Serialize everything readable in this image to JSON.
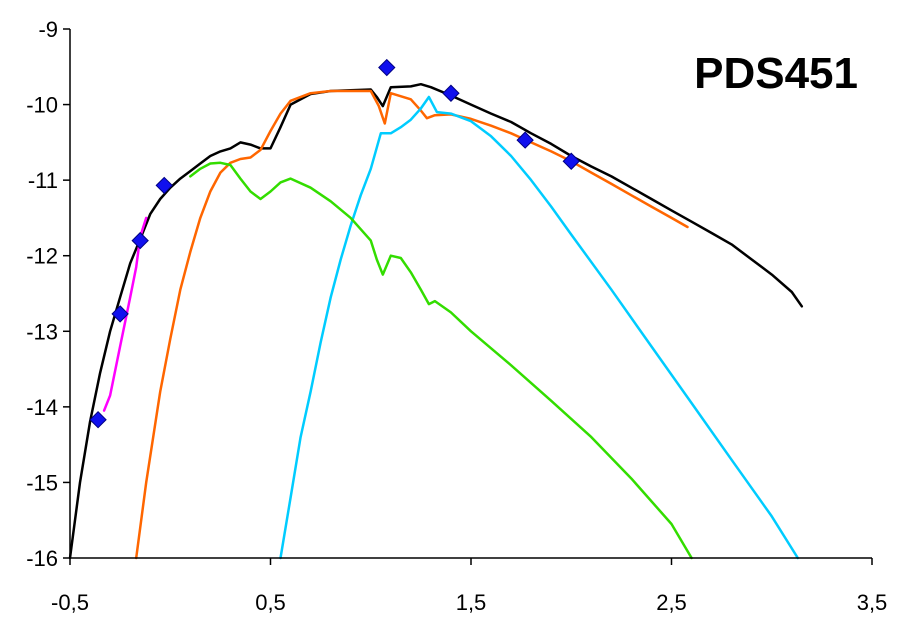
{
  "chart_data": {
    "type": "line",
    "title": "PDS451",
    "xlabel": "",
    "ylabel": "",
    "xlim": [
      -0.5,
      3.5
    ],
    "ylim": [
      -16,
      -9
    ],
    "x_ticks": [
      -0.5,
      0.5,
      1.5,
      2.5,
      3.5
    ],
    "x_tick_labels": [
      "-0,5",
      "0,5",
      "1,5",
      "2,5",
      "3,5"
    ],
    "y_ticks": [
      -9,
      -10,
      -11,
      -12,
      -13,
      -14,
      -15,
      -16
    ],
    "y_tick_labels": [
      "-9",
      "-10",
      "-11",
      "-12",
      "-13",
      "-14",
      "-15",
      "-16"
    ],
    "grid": false,
    "legend": "none",
    "series": [
      {
        "type": "line",
        "color": "#000000",
        "x": [
          -0.5,
          -0.45,
          -0.4,
          -0.35,
          -0.3,
          -0.25,
          -0.2,
          -0.15,
          -0.1,
          -0.05,
          0.0,
          0.05,
          0.1,
          0.15,
          0.2,
          0.25,
          0.3,
          0.35,
          0.4,
          0.45,
          0.5,
          0.55,
          0.6,
          0.7,
          0.8,
          0.9,
          1.0,
          1.03,
          1.06,
          1.1,
          1.2,
          1.25,
          1.3,
          1.4,
          1.5,
          1.6,
          1.7,
          1.8,
          1.9,
          2.0,
          2.1,
          2.2,
          2.3,
          2.4,
          2.5,
          2.6,
          2.7,
          2.8,
          2.9,
          3.0,
          3.1,
          3.15
        ],
        "y": [
          -16,
          -15.0,
          -14.2,
          -13.55,
          -13.0,
          -12.55,
          -12.1,
          -11.78,
          -11.45,
          -11.25,
          -11.1,
          -10.98,
          -10.88,
          -10.78,
          -10.68,
          -10.62,
          -10.58,
          -10.5,
          -10.53,
          -10.58,
          -10.58,
          -10.3,
          -10.0,
          -9.86,
          -9.82,
          -9.81,
          -9.8,
          -9.9,
          -10.02,
          -9.77,
          -9.76,
          -9.73,
          -9.77,
          -9.88,
          -10.0,
          -10.12,
          -10.23,
          -10.38,
          -10.52,
          -10.68,
          -10.82,
          -10.95,
          -11.1,
          -11.25,
          -11.4,
          -11.55,
          -11.7,
          -11.85,
          -12.05,
          -12.25,
          -12.48,
          -12.67
        ]
      },
      {
        "type": "line",
        "color": "#ff6600",
        "x": [
          -0.17,
          -0.12,
          -0.05,
          0.0,
          0.05,
          0.1,
          0.15,
          0.2,
          0.25,
          0.3,
          0.35,
          0.4,
          0.45,
          0.5,
          0.55,
          0.6,
          0.7,
          0.8,
          0.9,
          1.0,
          1.04,
          1.07,
          1.1,
          1.2,
          1.25,
          1.28,
          1.32,
          1.4,
          1.5,
          1.6,
          1.7,
          1.8,
          1.9,
          2.0,
          2.1,
          2.2,
          2.3,
          2.4,
          2.5,
          2.58
        ],
        "y": [
          -16,
          -15.0,
          -13.8,
          -13.1,
          -12.45,
          -11.95,
          -11.5,
          -11.15,
          -10.9,
          -10.77,
          -10.72,
          -10.7,
          -10.6,
          -10.35,
          -10.12,
          -9.95,
          -9.85,
          -9.82,
          -9.82,
          -9.82,
          -10.02,
          -10.25,
          -9.85,
          -9.93,
          -10.08,
          -10.18,
          -10.14,
          -10.13,
          -10.19,
          -10.28,
          -10.38,
          -10.5,
          -10.62,
          -10.75,
          -10.9,
          -11.05,
          -11.2,
          -11.35,
          -11.5,
          -11.62
        ]
      },
      {
        "type": "line",
        "color": "#00ccff",
        "x": [
          0.55,
          0.6,
          0.65,
          0.7,
          0.75,
          0.8,
          0.85,
          0.9,
          0.95,
          1.0,
          1.05,
          1.1,
          1.15,
          1.2,
          1.25,
          1.29,
          1.33,
          1.4,
          1.5,
          1.6,
          1.7,
          1.8,
          1.9,
          2.0,
          2.2,
          2.4,
          2.6,
          2.8,
          3.0,
          3.13
        ],
        "y": [
          -16,
          -15.2,
          -14.4,
          -13.8,
          -13.15,
          -12.55,
          -12.05,
          -11.6,
          -11.2,
          -10.85,
          -10.38,
          -10.38,
          -10.3,
          -10.2,
          -10.05,
          -9.9,
          -10.1,
          -10.12,
          -10.22,
          -10.42,
          -10.68,
          -11.0,
          -11.35,
          -11.72,
          -12.45,
          -13.2,
          -13.95,
          -14.7,
          -15.45,
          -16
        ]
      },
      {
        "type": "line",
        "color": "#33dd00",
        "x": [
          0.1,
          0.15,
          0.2,
          0.25,
          0.3,
          0.35,
          0.4,
          0.45,
          0.5,
          0.55,
          0.6,
          0.7,
          0.8,
          0.9,
          1.0,
          1.03,
          1.06,
          1.1,
          1.15,
          1.2,
          1.25,
          1.29,
          1.32,
          1.4,
          1.5,
          1.7,
          1.9,
          2.1,
          2.3,
          2.5,
          2.6
        ],
        "y": [
          -10.95,
          -10.85,
          -10.78,
          -10.77,
          -10.8,
          -10.98,
          -11.15,
          -11.25,
          -11.15,
          -11.03,
          -10.98,
          -11.1,
          -11.28,
          -11.5,
          -11.8,
          -12.05,
          -12.25,
          -12.0,
          -12.03,
          -12.22,
          -12.45,
          -12.64,
          -12.6,
          -12.75,
          -13.0,
          -13.45,
          -13.92,
          -14.4,
          -14.95,
          -15.55,
          -16
        ]
      },
      {
        "type": "line",
        "color": "#ff00ff",
        "x": [
          -0.33,
          -0.3,
          -0.25,
          -0.2,
          -0.17,
          -0.15,
          -0.12
        ],
        "y": [
          -14.05,
          -13.85,
          -13.2,
          -12.55,
          -12.15,
          -11.75,
          -11.5
        ]
      },
      {
        "type": "scatter",
        "color": "#1010ee",
        "x": [
          -0.36,
          -0.25,
          -0.15,
          -0.03,
          1.08,
          1.4,
          1.77,
          2.0
        ],
        "y": [
          -14.17,
          -12.77,
          -11.8,
          -11.07,
          -9.51,
          -9.85,
          -10.47,
          -10.75
        ]
      }
    ]
  }
}
